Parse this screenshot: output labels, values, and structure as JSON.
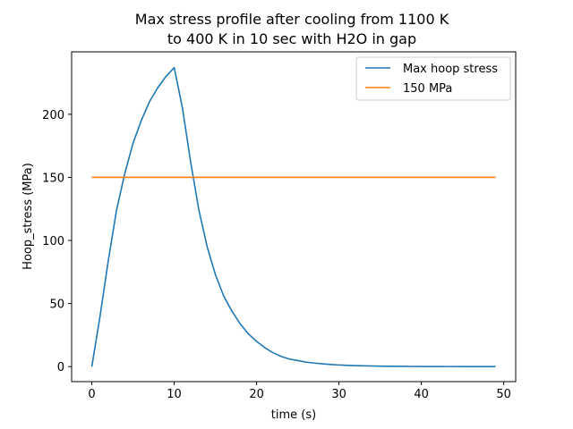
{
  "chart_data": {
    "type": "line",
    "title_lines": [
      "Max stress profile after cooling from 1100 K",
      "to 400 K in 10 sec with H2O in gap"
    ],
    "xlabel": "time (s)",
    "ylabel": "Hoop_stress (MPa)",
    "xlim": [
      -2.45,
      51.45
    ],
    "ylim": [
      -11.9,
      249.5
    ],
    "xticks": [
      0,
      10,
      20,
      30,
      40,
      50
    ],
    "yticks": [
      0,
      50,
      100,
      150,
      200
    ],
    "grid": false,
    "legend_position": "top-right",
    "series": [
      {
        "name": "Max hoop stress",
        "color": "#1f77b4",
        "x": [
          0,
          1,
          2,
          3,
          4,
          5,
          6,
          7,
          8,
          9,
          10,
          11,
          12,
          13,
          14,
          15,
          16,
          17,
          18,
          19,
          20,
          21,
          22,
          23,
          24,
          25,
          26,
          27,
          28,
          29,
          30,
          31,
          32,
          33,
          34,
          35,
          36,
          37,
          38,
          39,
          40,
          41,
          42,
          43,
          44,
          45,
          46,
          47,
          48,
          49
        ],
        "y": [
          0,
          40,
          84,
          124,
          153,
          177,
          195,
          210,
          221,
          230,
          237,
          205,
          162,
          124,
          95,
          73,
          56,
          44,
          34,
          26,
          20,
          15,
          11,
          8,
          6,
          4.8,
          3.6,
          2.8,
          2.2,
          1.7,
          1.3,
          1.0,
          0.8,
          0.6,
          0.5,
          0.4,
          0.3,
          0.25,
          0.2,
          0.15,
          0.12,
          0.1,
          0.08,
          0.06,
          0.05,
          0.04,
          0.03,
          0.02,
          0.02,
          0.01
        ]
      },
      {
        "name": "150 MPa",
        "color": "#ff7f0e",
        "x": [
          0,
          49
        ],
        "y": [
          150,
          150
        ]
      }
    ]
  }
}
